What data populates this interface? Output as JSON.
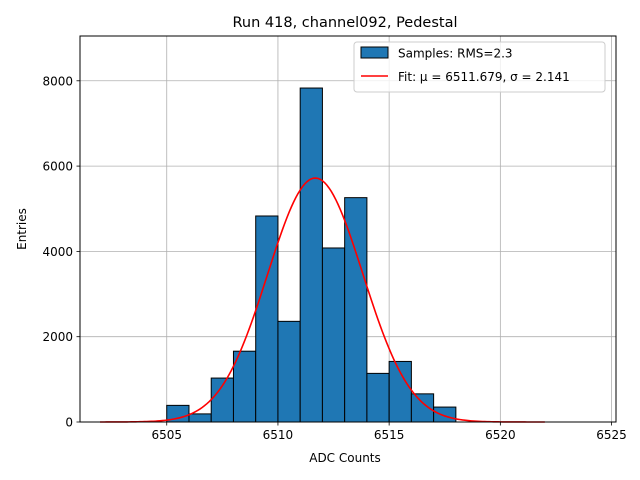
{
  "chart_data": {
    "type": "bar",
    "title": "Run 418, channel092, Pedestal",
    "xlabel": "ADC Counts",
    "ylabel": "Entries",
    "xlim": [
      6501.1,
      6525.2
    ],
    "ylim": [
      0,
      9050
    ],
    "xticks": [
      6505,
      6510,
      6515,
      6520,
      6525
    ],
    "yticks": [
      0,
      2000,
      4000,
      6000,
      8000
    ],
    "grid": true,
    "legend_position": "top-right",
    "histogram": {
      "name": "Samples: RMS=2.3",
      "color": "#1f77b4",
      "edgecolor": "#000000",
      "bin_edges": [
        6505,
        6506,
        6507,
        6508,
        6509,
        6510,
        6511,
        6512,
        6513,
        6514,
        6515,
        6516,
        6517,
        6518
      ],
      "counts": [
        390,
        190,
        1030,
        1660,
        4830,
        2360,
        7830,
        4080,
        5260,
        1140,
        1420,
        660,
        350
      ]
    },
    "fit": {
      "name": "Fit: μ = 6511.679, σ = 2.141",
      "color": "#ff0000",
      "mu": 6511.679,
      "sigma": 2.141,
      "amplitude": 5720,
      "x_range": [
        6502,
        6522
      ]
    }
  }
}
